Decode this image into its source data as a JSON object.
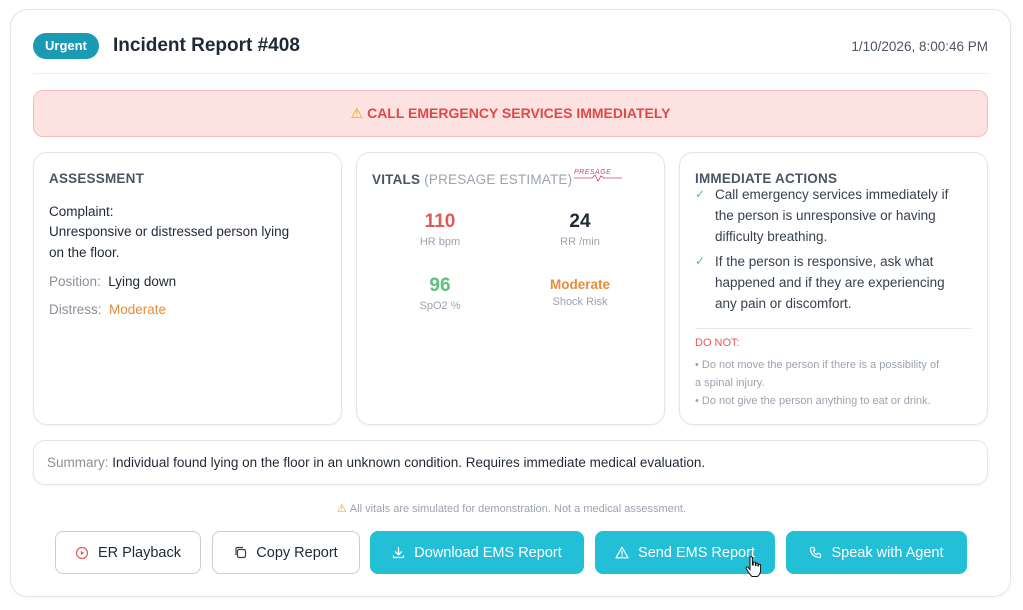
{
  "header": {
    "badge": "Urgent",
    "title": "Incident Report #408",
    "timestamp": "1/10/2026, 8:00:46 PM"
  },
  "alert": {
    "icon": "warning-icon",
    "text": "CALL EMERGENCY SERVICES IMMEDIATELY"
  },
  "assessment": {
    "title": "ASSESSMENT",
    "complaint_label": "Complaint:",
    "complaint_line1": "Unresponsive or distressed person lying",
    "complaint_line2": "on the floor.",
    "position_label": "Position:",
    "position_value": "Lying down",
    "distress_label": "Distress:",
    "distress_value": "Moderate"
  },
  "vitals": {
    "title": "VITALS",
    "subtitle": "(PRESAGE ESTIMATE)",
    "logo_text": "PRESAGE",
    "hr": {
      "value": "110",
      "label": "HR bpm"
    },
    "rr": {
      "value": "24",
      "label": "RR /min"
    },
    "spo2": {
      "value": "96",
      "label": "SpO2 %"
    },
    "shock": {
      "value": "Moderate",
      "label": "Shock Risk"
    }
  },
  "actions": {
    "title": "IMMEDIATE ACTIONS",
    "item1_line1": "Call emergency services immediately if",
    "item1_line2": "the person is unresponsive or having",
    "item1_line3": "difficulty breathing.",
    "item2_line1": "If the person is responsive, ask what",
    "item2_line2": "happened and if they are experiencing",
    "item2_line3": "any pain or discomfort.",
    "donot_title": "DO NOT:",
    "donot1_line1": "• Do not move the person if there is a possibility of",
    "donot1_line2": "a spinal injury.",
    "donot2": "• Do not give the person anything to eat or drink."
  },
  "summary": {
    "label": "Summary:",
    "text": "Individual found lying on the floor in an unknown condition. Requires immediate medical evaluation."
  },
  "disclaimer": "All vitals are simulated for demonstration. Not a medical assessment.",
  "buttons": {
    "er_playback": "ER Playback",
    "copy_report": "Copy Report",
    "download_ems": "Download EMS Report",
    "send_ems": "Send EMS Report",
    "speak_agent": "Speak with Agent"
  },
  "colors": {
    "accent": "#23bfd6",
    "badge": "#1a9bb3",
    "alert_bg": "#fde2e2",
    "alert_text": "#e04848",
    "hr": "#e05a5a",
    "spo2": "#5cc27a",
    "moderate": "#ea8a3a"
  }
}
